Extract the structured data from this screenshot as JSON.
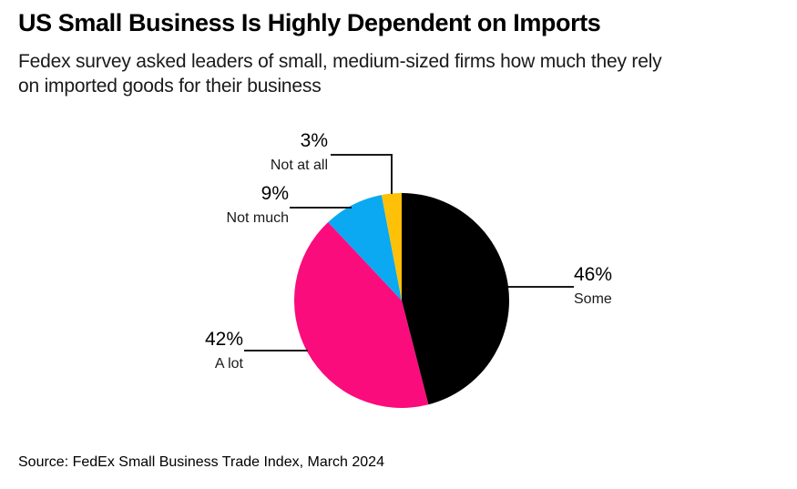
{
  "header": {
    "title": "US Small Business Is Highly Dependent on Imports",
    "subtitle_line1": "Fedex survey asked leaders of small, medium-sized firms how much they rely",
    "subtitle_line2": "on imported goods for their business"
  },
  "chart_data": {
    "type": "pie",
    "title": "US Small Business Is Highly Dependent on Imports",
    "unit": "%",
    "start_angle_deg": 0,
    "direction": "clockwise",
    "label_style": "outside-leader-lines",
    "legend_position": "none",
    "slices": [
      {
        "label": "Some",
        "value": 46,
        "pct_label": "46%",
        "color": "#000000"
      },
      {
        "label": "A lot",
        "value": 42,
        "pct_label": "42%",
        "color": "#FA0C7D"
      },
      {
        "label": "Not much",
        "value": 9,
        "pct_label": "9%",
        "color": "#0AA9F2"
      },
      {
        "label": "Not at all",
        "value": 3,
        "pct_label": "3%",
        "color": "#FFC107"
      }
    ]
  },
  "footer": {
    "source": "Source: FedEx Small Business Trade Index, March 2024"
  }
}
